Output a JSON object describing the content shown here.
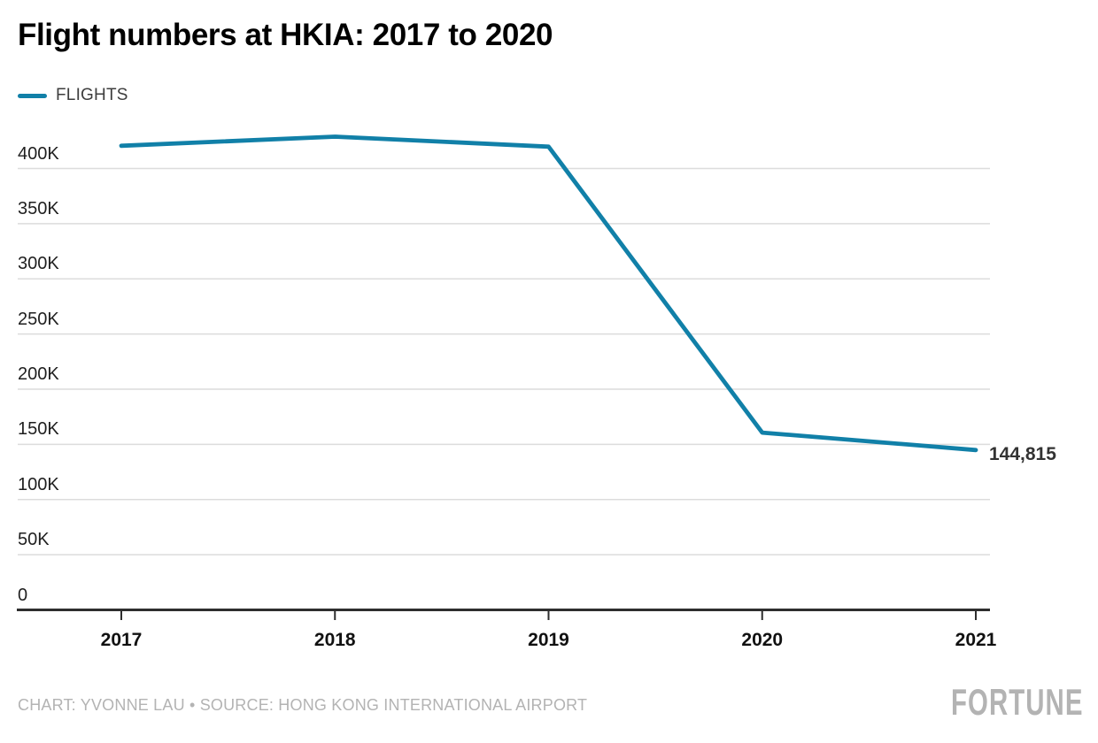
{
  "header": {
    "title": "Flight numbers at HKIA: 2017 to 2020"
  },
  "legend": {
    "items": [
      {
        "label": "FLIGHTS"
      }
    ]
  },
  "chart_data": {
    "type": "line",
    "title": "Flight numbers at HKIA: 2017 to 2020",
    "x": [
      "2017",
      "2018",
      "2019",
      "2020",
      "2021"
    ],
    "series": [
      {
        "name": "FLIGHTS",
        "color": "#1180a8",
        "values": [
          420630,
          428870,
          419795,
          160655,
          144815
        ]
      }
    ],
    "end_label": "144,815",
    "y_axis": {
      "tick_labels": [
        "400K",
        "350K",
        "300K",
        "250K",
        "200K",
        "150K",
        "100K",
        "50K",
        "0"
      ],
      "tick_values": [
        400000,
        350000,
        300000,
        250000,
        200000,
        150000,
        100000,
        50000,
        0
      ],
      "ylim": [
        0,
        432000
      ],
      "grid": true
    },
    "x_axis": {
      "tick_labels": [
        "2017",
        "2018",
        "2019",
        "2020",
        "2021"
      ]
    },
    "legend_position": "top-left"
  },
  "footer": {
    "credit": "CHART: YVONNE LAU • SOURCE: HONG KONG INTERNATIONAL AIRPORT",
    "logo": "FORTUNE"
  },
  "colors": {
    "accent": "#1180a8",
    "grid": "#dcdcdc",
    "axis": "#2e2e2e",
    "muted_text": "#b3b3b3"
  }
}
